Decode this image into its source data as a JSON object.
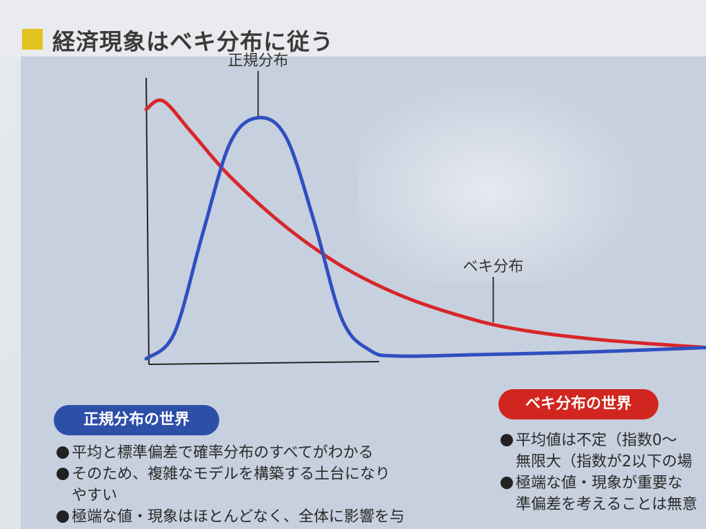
{
  "page": {
    "title": "経済現象はベキ分布に従う"
  },
  "chart_data": {
    "type": "line",
    "title": "",
    "xlabel": "",
    "ylabel": "",
    "grid": false,
    "xlim": [
      0,
      10
    ],
    "ylim": [
      0,
      1
    ],
    "series": [
      {
        "name": "ベキ分布",
        "color": "#d8262a",
        "x": [
          0,
          0.3,
          0.8,
          1.5,
          2.5,
          3.5,
          4.5,
          5.5,
          6.5,
          8,
          10
        ],
        "y": [
          0.9,
          0.93,
          0.82,
          0.66,
          0.48,
          0.34,
          0.24,
          0.17,
          0.12,
          0.08,
          0.05
        ]
      },
      {
        "name": "正規分布",
        "color": "#2f4fc0",
        "x": [
          0,
          0.5,
          1,
          1.5,
          2,
          2.5,
          3,
          3.5,
          4,
          4.5,
          6,
          8,
          10
        ],
        "y": [
          0.01,
          0.1,
          0.45,
          0.78,
          0.87,
          0.8,
          0.5,
          0.15,
          0.04,
          0.02,
          0.025,
          0.035,
          0.05
        ]
      }
    ],
    "annotations": [
      {
        "text": "正規分布",
        "target": "正規分布"
      },
      {
        "text": "ベキ分布",
        "target": "ベキ分布"
      }
    ]
  },
  "left_panel": {
    "label": "正規分布の世界",
    "bullets": [
      "平均と標準偏差で確率分布のすべてがわかる",
      "そのため、複雑なモデルを構築する土台になり",
      "やすい",
      "極端な値・現象はほとんどなく、全体に影響を与"
    ]
  },
  "right_panel": {
    "label": "ベキ分布の世界",
    "bullets": [
      "平均値は不定（指数0～",
      "無限大（指数が2以下の場",
      "極端な値・現象が重要な",
      "準偏差を考えることは無意"
    ]
  }
}
